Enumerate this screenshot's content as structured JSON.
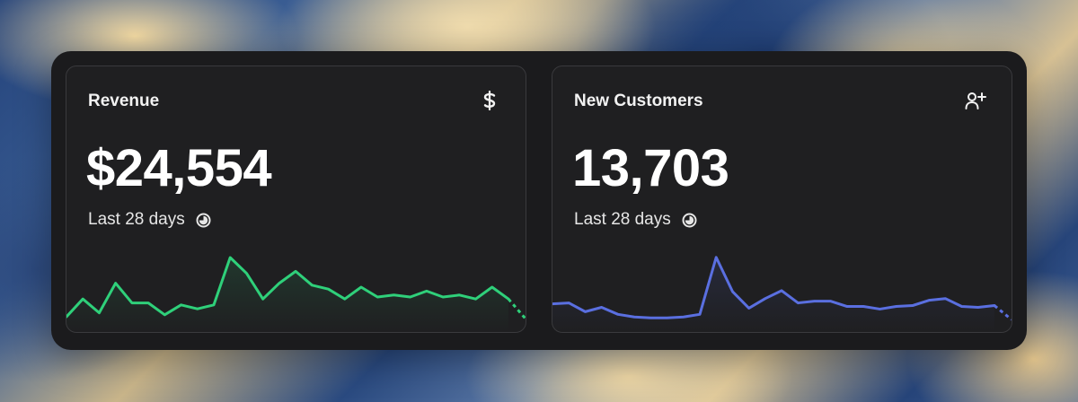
{
  "cards": [
    {
      "title": "Revenue",
      "icon": "dollar-icon",
      "value": "$24,554",
      "period_label": "Last 28 days",
      "period_icon": "clock-icon",
      "accent_color": "#2fd07a"
    },
    {
      "title": "New Customers",
      "icon": "user-plus-icon",
      "value": "13,703",
      "period_label": "Last 28 days",
      "period_icon": "clock-icon",
      "accent_color": "#5a6fe0"
    }
  ],
  "chart_data": [
    {
      "type": "line",
      "title": "",
      "x": [
        1,
        2,
        3,
        4,
        5,
        6,
        7,
        8,
        9,
        10,
        11,
        12,
        13,
        14,
        15,
        16,
        17,
        18,
        19,
        20,
        21,
        22,
        23,
        24,
        25,
        26,
        27,
        28
      ],
      "series": [
        {
          "values": [
            10,
            28,
            14,
            44,
            24,
            24,
            12,
            22,
            18,
            22,
            70,
            54,
            28,
            44,
            56,
            42,
            38,
            28,
            40,
            30,
            32,
            30,
            36,
            30,
            32,
            28,
            40,
            28
          ]
        }
      ],
      "projected_tail": [
        28,
        8
      ],
      "ylim": [
        0,
        80
      ],
      "grid": false
    },
    {
      "type": "line",
      "title": "",
      "x": [
        1,
        2,
        3,
        4,
        5,
        6,
        7,
        8,
        9,
        10,
        11,
        12,
        13,
        14,
        15,
        16,
        17,
        18,
        19,
        20,
        21,
        22,
        23,
        24,
        25,
        26,
        27,
        28
      ],
      "series": [
        {
          "values": [
            26,
            27,
            17,
            22,
            14,
            11,
            10,
            10,
            11,
            14,
            79,
            40,
            21,
            32,
            41,
            27,
            29,
            29,
            23,
            23,
            20,
            23,
            24,
            30,
            32,
            23,
            22,
            24
          ]
        }
      ],
      "projected_tail": [
        24,
        8
      ],
      "ylim": [
        0,
        90
      ],
      "grid": false
    }
  ]
}
